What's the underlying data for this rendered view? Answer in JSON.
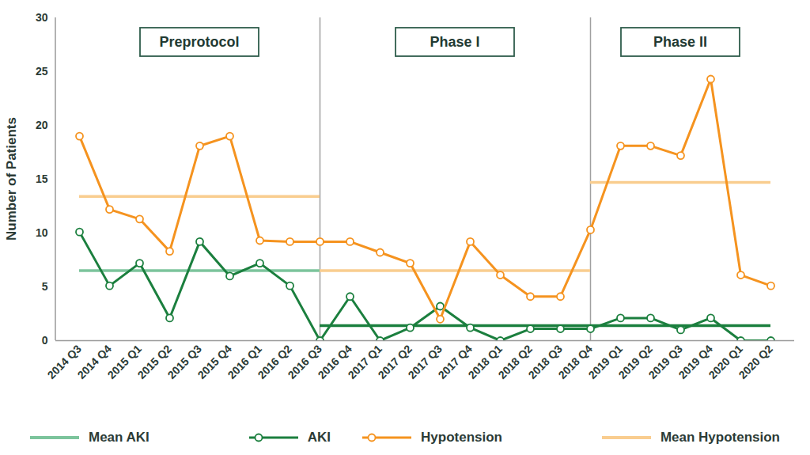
{
  "chart_data": {
    "type": "line",
    "y_label": "Number of Patients",
    "categories": [
      "2014 Q3",
      "2014 Q4",
      "2015 Q1",
      "2015 Q2",
      "2015 Q3",
      "2015 Q4",
      "2016 Q1",
      "2016 Q2",
      "2016 Q3",
      "2016 Q4",
      "2017 Q1",
      "2017 Q2",
      "2017 Q3",
      "2017 Q4",
      "2018 Q1",
      "2018 Q2",
      "2018 Q3",
      "2018 Q4",
      "2019 Q1",
      "2019 Q2",
      "2019 Q3",
      "2019 Q4",
      "2020 Q1",
      "2020 Q2"
    ],
    "series": [
      {
        "name": "AKI",
        "color": "#1b7f3e",
        "marker": "circle",
        "values": [
          10.1,
          5.1,
          7.2,
          2.1,
          9.2,
          6,
          7.2,
          5.1,
          0,
          4.1,
          0,
          1.2,
          3.2,
          1.2,
          0,
          1.1,
          1.1,
          1.1,
          2.1,
          2.1,
          1,
          2.1,
          0,
          0
        ]
      },
      {
        "name": "Hypotension",
        "color": "#f5931f",
        "marker": "circle",
        "values": [
          19,
          12.2,
          11.3,
          8.3,
          18.1,
          19,
          9.3,
          9.2,
          9.2,
          9.2,
          8.2,
          7.2,
          2,
          9.2,
          6.1,
          4.1,
          4.1,
          10.3,
          18.1,
          18.1,
          17.2,
          24.3,
          6.1,
          5.1
        ]
      }
    ],
    "means": [
      {
        "name": "Mean AKI",
        "color": "#7cc49c",
        "segments": [
          {
            "from": "2014 Q3",
            "to": "2016 Q3",
            "value": 6.5,
            "color": "#7cc49c"
          },
          {
            "from": "2016 Q3",
            "to": "2020 Q2",
            "value": 1.4,
            "color": "#1b7f3e"
          }
        ]
      },
      {
        "name": "Mean Hypotension",
        "color": "#f9cd8f",
        "segments": [
          {
            "from": "2014 Q3",
            "to": "2016 Q3",
            "value": 13.4,
            "color": "#f9cd8f"
          },
          {
            "from": "2016 Q3",
            "to": "2018 Q4",
            "value": 6.5,
            "color": "#f9cd8f"
          },
          {
            "from": "2018 Q4",
            "to": "2020 Q2",
            "value": 14.7,
            "color": "#f9cd8f"
          }
        ]
      }
    ],
    "phases": [
      {
        "label": "Preprotocol",
        "from": "2014 Q3",
        "to": "2016 Q3"
      },
      {
        "label": "Phase I",
        "from": "2016 Q3",
        "to": "2018 Q4"
      },
      {
        "label": "Phase II",
        "from": "2018 Q4",
        "to": "2020 Q2"
      }
    ],
    "ylim": [
      0,
      30
    ],
    "yticks": [
      0,
      5,
      10,
      15,
      20,
      25,
      30
    ],
    "grid": false,
    "legend": "bottom"
  }
}
